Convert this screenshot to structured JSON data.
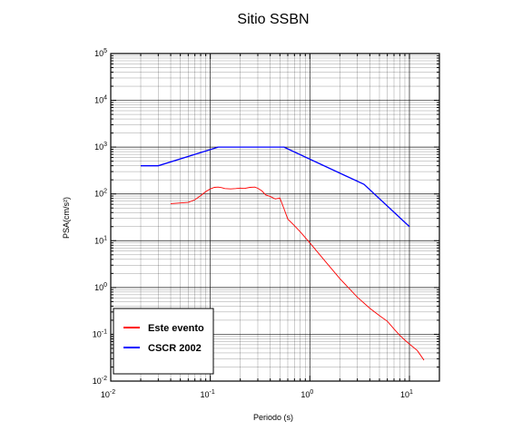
{
  "chart_data": {
    "type": "line",
    "title": "Sitio SSBN",
    "xlabel": "Periodo (s)",
    "ylabel": "PSA(cm/s²)",
    "xscale": "log",
    "yscale": "log",
    "xlim": [
      0.01,
      20
    ],
    "ylim": [
      0.01,
      100000
    ],
    "grid": true,
    "legend_position": "bottom-left",
    "x_ticks": [
      {
        "base": "10",
        "exp": "-2"
      },
      {
        "base": "10",
        "exp": "-1"
      },
      {
        "base": "10",
        "exp": "0"
      },
      {
        "base": "10",
        "exp": "1"
      }
    ],
    "y_ticks": [
      {
        "base": "10",
        "exp": "-2"
      },
      {
        "base": "10",
        "exp": "-1"
      },
      {
        "base": "10",
        "exp": "0"
      },
      {
        "base": "10",
        "exp": "1"
      },
      {
        "base": "10",
        "exp": "2"
      },
      {
        "base": "10",
        "exp": "3"
      },
      {
        "base": "10",
        "exp": "4"
      },
      {
        "base": "10",
        "exp": "5"
      }
    ],
    "series": [
      {
        "name": "Este evento",
        "color": "#ff0000",
        "x": [
          0.04,
          0.05,
          0.06,
          0.07,
          0.08,
          0.09,
          0.1,
          0.11,
          0.12,
          0.13,
          0.14,
          0.16,
          0.18,
          0.2,
          0.22,
          0.25,
          0.28,
          0.3,
          0.33,
          0.36,
          0.4,
          0.45,
          0.5,
          0.55,
          0.6,
          0.7,
          0.8,
          1.0,
          1.5,
          2.0,
          3.0,
          4.0,
          5.0,
          6.0,
          7.0,
          8.0,
          9.0,
          10.0,
          12.0,
          14.0
        ],
        "y": [
          62,
          64,
          66,
          75,
          92,
          112,
          128,
          138,
          140,
          136,
          130,
          128,
          130,
          133,
          131,
          138,
          140,
          132,
          116,
          95,
          88,
          78,
          82,
          48,
          29,
          21,
          15.5,
          9.0,
          3.2,
          1.55,
          0.62,
          0.36,
          0.25,
          0.19,
          0.13,
          0.095,
          0.075,
          0.062,
          0.045,
          0.028
        ]
      },
      {
        "name": "CSCR 2002",
        "color": "#0000ff",
        "x": [
          0.02,
          0.03,
          0.12,
          0.55,
          3.5,
          10
        ],
        "y": [
          400,
          400,
          1000,
          1000,
          160,
          20
        ]
      }
    ]
  }
}
